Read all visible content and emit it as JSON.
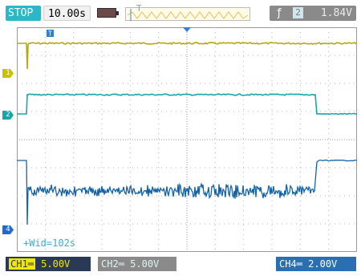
{
  "status": "STOP",
  "timebase": "10.00s",
  "trigger": {
    "level": "1.84V",
    "source": "2"
  },
  "channels": {
    "ch1": {
      "label": "CH1═",
      "volts": "5.00V",
      "color": "#b8a80c",
      "marker": "1"
    },
    "ch2": {
      "label": "CH2═",
      "volts": "5.00V",
      "color": "#1aa6a8",
      "marker": "2"
    },
    "ch4": {
      "label": "CH4═",
      "volts": "2.00V",
      "color": "#1463a8",
      "marker": "4"
    }
  },
  "measurement": "+Wid=102s",
  "icons": {
    "battery": "battery-icon",
    "trigger_edge": "rising-edge-icon",
    "trigger_position": "trigger-t-icon",
    "trigger_center": "trigger-center-triangle-icon"
  }
}
